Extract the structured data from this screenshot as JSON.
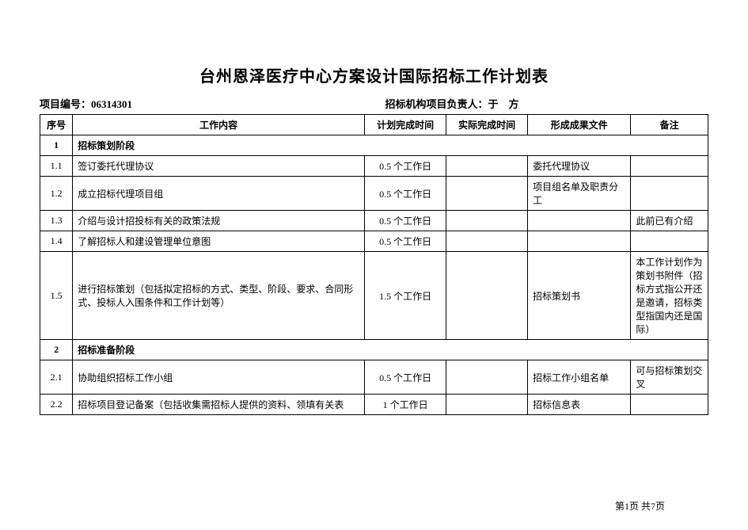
{
  "title": "台州恩泽医疗中心方案设计国际招标工作计划表",
  "meta": {
    "project_number_label": "项目编号：",
    "project_number": "06314301",
    "leader_label": "招标机构项目负责人：",
    "leader_name": "于　方"
  },
  "columns": {
    "seq": "序号",
    "content": "工作内容",
    "planned": "计划完成时间",
    "actual": "实际完成时间",
    "deliverable": "形成成果文件",
    "note": "备注"
  },
  "rows": [
    {
      "type": "section",
      "seq": "1",
      "content": "招标策划阶段"
    },
    {
      "type": "item",
      "seq": "1.1",
      "content": "签订委托代理协议",
      "planned": "0.5 个工作日",
      "actual": "",
      "deliverable": "委托代理协议",
      "note": ""
    },
    {
      "type": "item",
      "seq": "1.2",
      "content": "成立招标代理项目组",
      "planned": "0.5 个工作日",
      "actual": "",
      "deliverable": "项目组名单及职责分工",
      "note": "",
      "height": "double"
    },
    {
      "type": "item",
      "seq": "1.3",
      "content": "介绍与设计招投标有关的政策法规",
      "planned": "0.5 个工作日",
      "actual": "",
      "deliverable": "",
      "note": "此前已有介绍"
    },
    {
      "type": "item",
      "seq": "1.4",
      "content": "了解招标人和建设管理单位意图",
      "planned": "0.5 个工作日",
      "actual": "",
      "deliverable": "",
      "note": ""
    },
    {
      "type": "item",
      "seq": "1.5",
      "content": "进行招标策划（包括拟定招标的方式、类型、阶段、要求、合同形式、投标人入围条件和工作计划等）",
      "planned": "1.5 个工作日",
      "actual": "",
      "deliverable": "招标策划书",
      "note": "本工作计划作为策划书附件（招标方式指公开还是邀请，招标类型指国内还是国际）",
      "height": "tall"
    },
    {
      "type": "section",
      "seq": "2",
      "content": "招标准备阶段"
    },
    {
      "type": "item",
      "seq": "2.1",
      "content": "协助组织招标工作小组",
      "planned": "0.5 个工作日",
      "actual": "",
      "deliverable": "招标工作小组名单",
      "note": "可与招标策划交叉",
      "height": "double"
    },
    {
      "type": "item",
      "seq": "2.2",
      "content": "招标项目登记备案（包括收集需招标人提供的资料、领填有关表",
      "planned": "1 个工作日",
      "actual": "",
      "deliverable": "招标信息表",
      "note": ""
    }
  ],
  "footer": {
    "text": "第1页  共7页"
  },
  "style": {
    "background_color": "#ffffff",
    "border_color": "#000000",
    "title_fontsize": 20,
    "body_fontsize": 12,
    "meta_fontsize": 13
  }
}
